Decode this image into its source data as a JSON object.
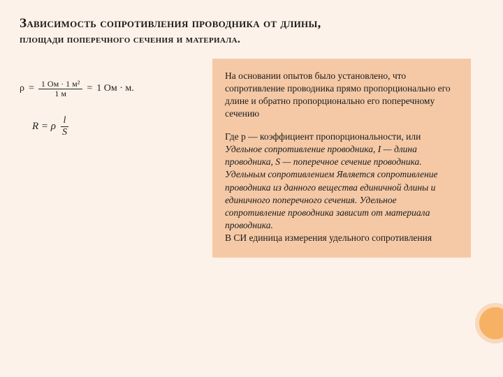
{
  "title": {
    "main": "Зависимость сопротивления проводника от длины,",
    "sub": "площади поперечного сечения и материала."
  },
  "formula1": {
    "rho": "ρ",
    "eq1": "=",
    "num": "1 Ом · 1 м²",
    "den": "1 м",
    "eq2": "=",
    "rhs": "1 Ом · м."
  },
  "formula2": {
    "lhs": "R = ρ",
    "num": "l",
    "den": "S"
  },
  "para1": "На основании опытов было установлено, что сопротивление проводника прямо пропорционально его длине и обратно пропорционально его поперечному сечению",
  "para2_a": "Где р — коэффициент пропорциональности, или ",
  "para2_b": "Удельное сопротивление проводника, I — длина проводника, S — поперечное сечение проводника.",
  "para2_c": "Удельным сопротивлением Является сопротивление проводника из данного вещества единичной длины и единичного поперечного сечения. Удельное сопротивление проводника зависит от материала проводника.",
  "para2_d": "В СИ единица измерения удельного сопротивления",
  "colors": {
    "page_bg": "#fdf2e9",
    "box_bg": "#f5c9a6",
    "circle_fill": "#f7b165",
    "circle_ring": "#f8d9bd",
    "text": "#1a1a1a"
  }
}
